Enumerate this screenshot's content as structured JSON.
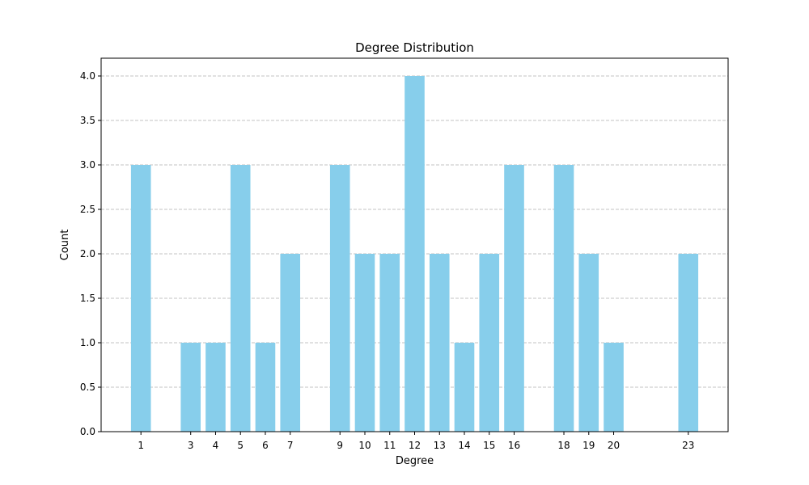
{
  "chart_data": {
    "type": "bar",
    "title": "Degree Distribution",
    "xlabel": "Degree",
    "ylabel": "Count",
    "categories": [
      1,
      3,
      4,
      5,
      6,
      7,
      9,
      10,
      11,
      12,
      13,
      14,
      15,
      16,
      18,
      19,
      20,
      23
    ],
    "values": [
      3,
      1,
      1,
      3,
      1,
      2,
      3,
      2,
      2,
      4,
      2,
      1,
      2,
      3,
      3,
      2,
      1,
      2
    ],
    "ylim": [
      0,
      4.2
    ],
    "yticks": [
      "0.0",
      "0.5",
      "1.0",
      "1.5",
      "2.0",
      "2.5",
      "3.0",
      "3.5",
      "4.0"
    ],
    "xlim": [
      -0.6,
      24.6
    ],
    "bar_color": "#87ceeb",
    "grid": "y-dashed",
    "grid_color": "#b0b0b0",
    "legend": "none"
  }
}
